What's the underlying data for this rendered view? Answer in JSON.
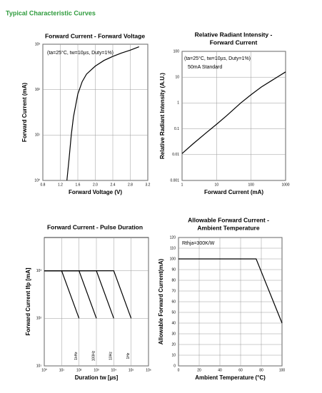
{
  "heading": "Typical Characteristic Curves",
  "chart_data": [
    {
      "type": "line",
      "title": "Forward Current - Forward Voltage",
      "x_label": "Forward Voltage (V)",
      "y_label": "Forward Current (mA)",
      "annotations": [
        "(ta=25°C, tw=10µs, Duty=1%)"
      ],
      "xlim": [
        0.8,
        3.2
      ],
      "xticks": [
        0.8,
        1.2,
        1.6,
        {
          "value": 2,
          "label": "2.0"
        },
        2.4,
        2.8,
        3.2
      ],
      "ylim": [
        1,
        1000
      ],
      "ylog": true,
      "yticks": [
        {
          "value": 1,
          "label": "10⁰"
        },
        {
          "value": 10,
          "label": "10¹"
        },
        {
          "value": 100,
          "label": "10²"
        },
        {
          "value": 1000,
          "label": "10³"
        }
      ],
      "grid": true,
      "series": [
        {
          "color": "#000000",
          "x": [
            1.35,
            1.4,
            1.45,
            1.5,
            1.6,
            1.7,
            1.8,
            2.0,
            2.2,
            2.4,
            2.6,
            2.8,
            3.0
          ],
          "values": [
            1,
            3,
            10,
            25,
            80,
            150,
            220,
            330,
            440,
            540,
            640,
            740,
            880
          ]
        }
      ]
    },
    {
      "type": "line",
      "title": [
        "Relative Radiant Intensity -",
        "Forward Current"
      ],
      "x_label": "Forward Current (mA)",
      "y_label": "Relative Radiant Intensity (A.U.)",
      "annotations": [
        "(ta=25°C, tw=10µs, Duty=1%)",
        "50mA Standard"
      ],
      "xlim": [
        1,
        1000
      ],
      "xlog": true,
      "xticks": [
        1,
        10,
        100,
        1000
      ],
      "ylim": [
        0.001,
        100
      ],
      "ylog": true,
      "yticks": [
        0.001,
        0.01,
        0.1,
        1,
        10,
        100
      ],
      "grid": true,
      "series": [
        {
          "color": "#000000",
          "x": [
            1,
            2,
            5,
            10,
            20,
            50,
            100,
            200,
            500,
            1000
          ],
          "values": [
            0.011,
            0.025,
            0.07,
            0.15,
            0.33,
            1,
            2.1,
            4.2,
            9,
            16
          ]
        }
      ]
    },
    {
      "type": "line",
      "title": "Forward Current - Pulse Duration",
      "x_label": "Duration tw [µs]",
      "y_label": "Forward Current Ifp [mA]",
      "xlim": [
        1,
        1000000
      ],
      "xlog": true,
      "xticks": [
        {
          "value": 1,
          "label": "10⁰"
        },
        {
          "value": 10,
          "label": "10¹"
        },
        {
          "value": 100,
          "label": "10²"
        },
        {
          "value": 1000,
          "label": "10³"
        },
        {
          "value": 10000,
          "label": "10⁴"
        },
        {
          "value": 100000,
          "label": "10⁵"
        },
        {
          "value": 1000000,
          "label": "10⁶"
        }
      ],
      "ylim": [
        10,
        5000
      ],
      "ylog": true,
      "yticks": [
        {
          "value": 10,
          "label": "10¹"
        },
        {
          "value": 100,
          "label": "10²"
        },
        {
          "value": 1000,
          "label": "10³"
        }
      ],
      "grid": true,
      "series": [
        {
          "name": "1kHz",
          "color": "#000000",
          "x": [
            1,
            10,
            100
          ],
          "values": [
            1000,
            1000,
            100
          ]
        },
        {
          "name": "100Hz",
          "color": "#000000",
          "x": [
            1,
            100,
            1000
          ],
          "values": [
            1000,
            1000,
            100
          ]
        },
        {
          "name": "10Hz",
          "color": "#000000",
          "x": [
            1,
            1000,
            10000
          ],
          "values": [
            1000,
            1000,
            100
          ]
        },
        {
          "name": "1Hz",
          "color": "#000000",
          "x": [
            1,
            10000,
            100000
          ],
          "values": [
            1000,
            1000,
            100
          ]
        }
      ]
    },
    {
      "type": "line",
      "title": [
        "Allowable Forward Current -",
        "Ambient Temperature"
      ],
      "x_label": "Ambient Temperature (°C)",
      "y_label": "Allowable Forward Current(mA)",
      "annotations": [
        "Rthja=300K/W"
      ],
      "xlim": [
        0,
        100
      ],
      "xticks": [
        0,
        20,
        40,
        60,
        80,
        100
      ],
      "ylim": [
        0,
        120
      ],
      "yticks": [
        0,
        10,
        20,
        30,
        40,
        50,
        60,
        70,
        80,
        90,
        100,
        110,
        120
      ],
      "grid": true,
      "series": [
        {
          "color": "#000000",
          "x": [
            0,
            75,
            100
          ],
          "values": [
            100,
            100,
            40
          ]
        }
      ]
    }
  ]
}
